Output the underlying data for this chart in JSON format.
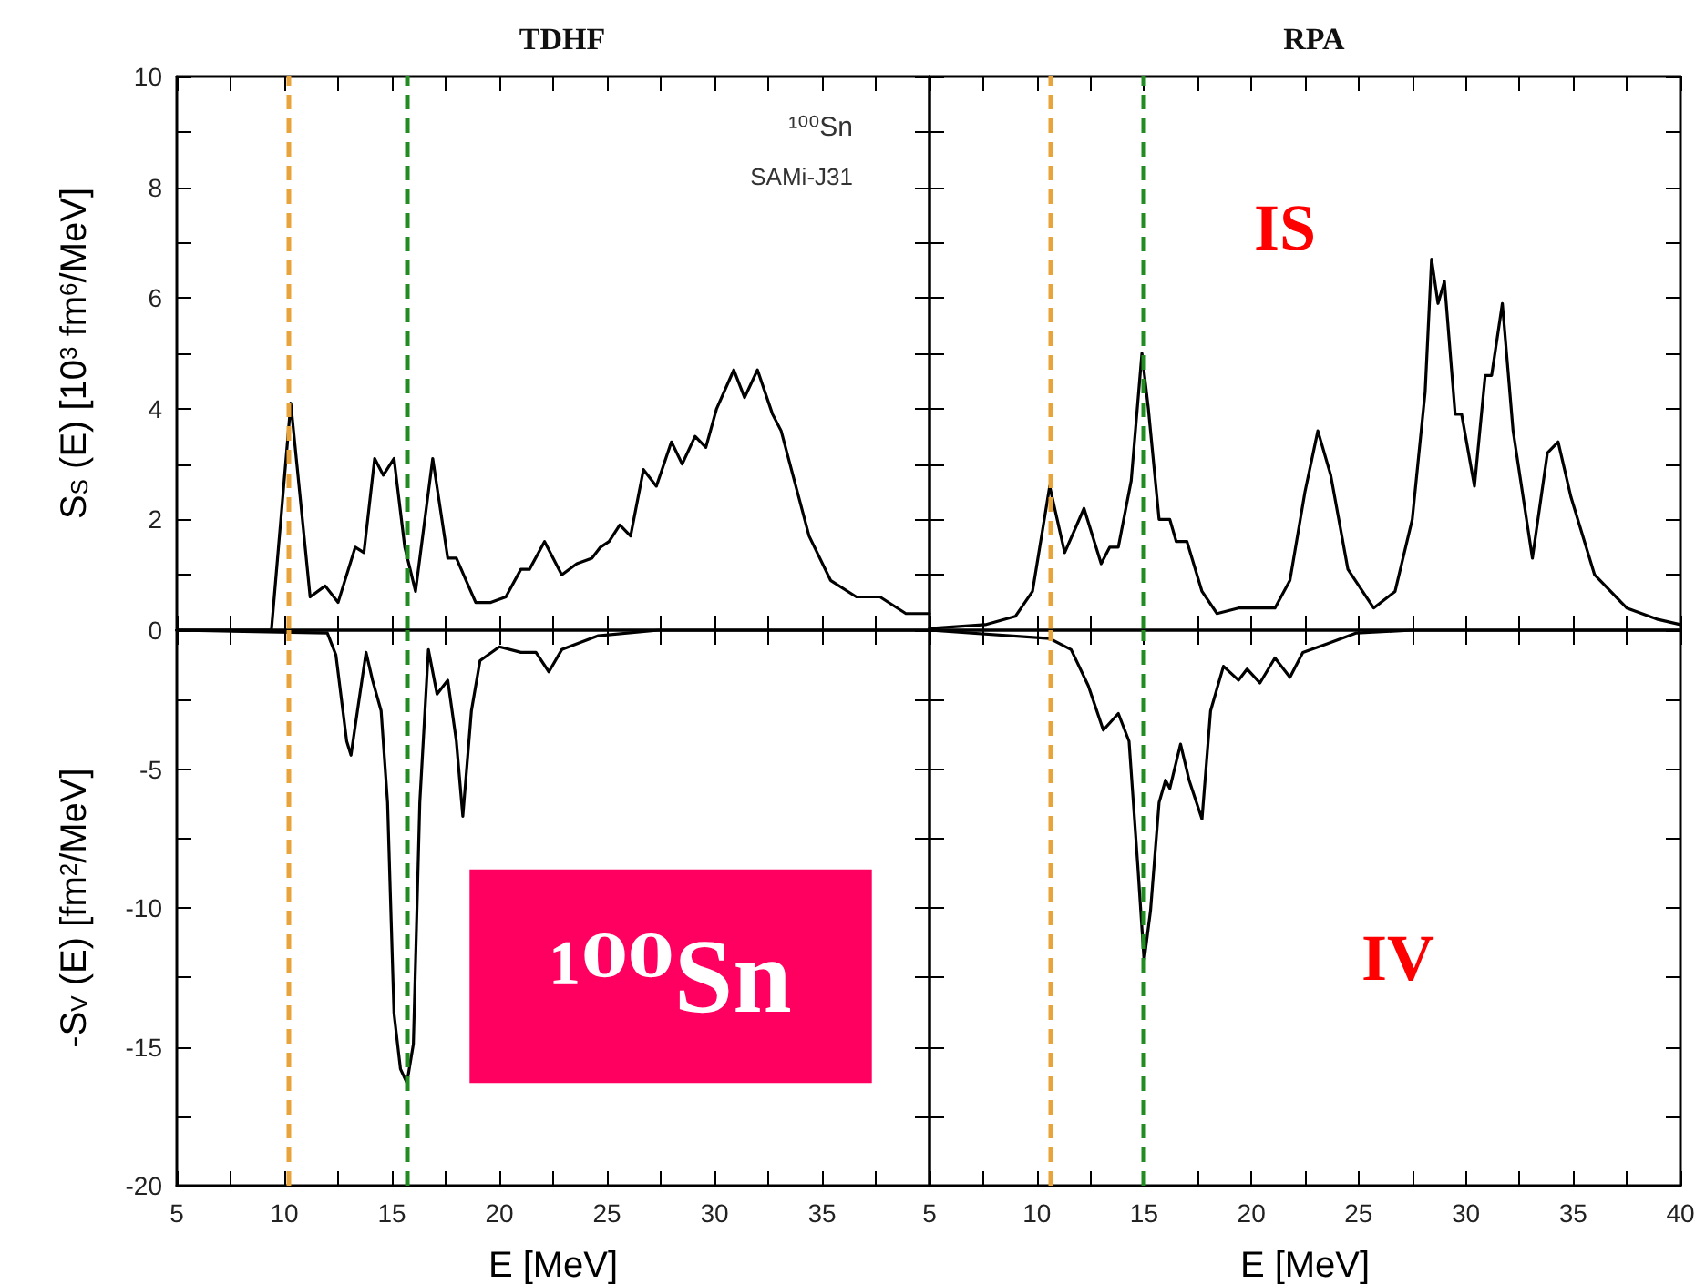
{
  "chart_data": [
    {
      "type": "line",
      "title": "TDHF",
      "ylabel": "S$_{S}$ (E) [10$^{3}$ fm$^{6}$/MeV]",
      "annotations": [
        "¹⁰⁰Sn",
        "SAMi-J31"
      ],
      "x": [
        5,
        9.4,
        10.3,
        11.2,
        11.9,
        12.5,
        13.3,
        13.7,
        14.2,
        14.6,
        15.1,
        15.6,
        16.1,
        16.9,
        17.6,
        18.0,
        18.9,
        19.6,
        20.3,
        21.0,
        21.4,
        22.1,
        22.9,
        23.6,
        24.3,
        24.7,
        25.1,
        25.6,
        26.1,
        26.7,
        27.3,
        28.0,
        28.5,
        29.1,
        29.6,
        30.1,
        30.9,
        31.4,
        32.0,
        32.7,
        33.1,
        34.4,
        35.4,
        36.6,
        37.7,
        38.9,
        40
      ],
      "series": [
        {
          "color": "#000000",
          "values": [
            0,
            0,
            4.1,
            0.6,
            0.8,
            0.5,
            1.5,
            1.4,
            3.1,
            2.8,
            3.1,
            1.5,
            0.7,
            3.1,
            1.3,
            1.3,
            0.5,
            0.5,
            0.6,
            1.1,
            1.1,
            1.6,
            1.0,
            1.2,
            1.3,
            1.5,
            1.6,
            1.9,
            1.7,
            2.9,
            2.6,
            3.4,
            3.0,
            3.5,
            3.3,
            4.0,
            4.7,
            4.2,
            4.7,
            3.9,
            3.6,
            1.7,
            0.9,
            0.6,
            0.6,
            0.3,
            0.3
          ]
        }
      ],
      "xlim": [
        5,
        40
      ],
      "xticks": [
        5,
        7.5,
        10,
        12.5,
        15,
        17.5,
        20,
        22.5,
        25,
        27.5,
        30,
        32.5,
        35,
        37.5,
        40
      ],
      "ylim": [
        0,
        10
      ],
      "yticks": [
        0,
        {
          "value": 1,
          "label": null
        },
        2,
        {
          "value": 3,
          "label": null
        },
        4,
        {
          "value": 5,
          "label": null
        },
        6,
        {
          "value": 7,
          "label": null
        },
        8,
        {
          "value": 9,
          "label": null
        },
        10
      ],
      "tick_labels": "y",
      "grid": false,
      "marker": "none",
      "line_style": "solid",
      "ref_lines": [
        {
          "axis": "x",
          "value": 10.2,
          "color": "#e8a33a",
          "line_style": "dashed"
        },
        {
          "axis": "x",
          "value": 15.7,
          "color": "#228b22",
          "line_style": "dashed"
        }
      ]
    },
    {
      "type": "line",
      "title": "RPA",
      "annotations": [
        "IS"
      ],
      "x": [
        5,
        7.6,
        9.0,
        9.8,
        10.6,
        11.3,
        12.2,
        13.0,
        13.4,
        13.8,
        14.4,
        14.9,
        15.2,
        15.7,
        16.2,
        16.5,
        17.0,
        17.7,
        18.4,
        19.4,
        20.4,
        21.1,
        21.8,
        22.5,
        23.1,
        23.7,
        24.5,
        25.7,
        26.7,
        27.5,
        28.1,
        28.4,
        28.7,
        29.0,
        29.5,
        29.8,
        30.4,
        30.9,
        31.2,
        31.7,
        32.2,
        33.1,
        33.8,
        34.3,
        34.9,
        36.0,
        37.5,
        38.9,
        40
      ],
      "series": [
        {
          "color": "#000000",
          "values": [
            0.03,
            0.1,
            0.25,
            0.7,
            2.6,
            1.4,
            2.2,
            1.2,
            1.5,
            1.5,
            2.7,
            5.0,
            4.0,
            2.0,
            2.0,
            1.6,
            1.6,
            0.7,
            0.3,
            0.4,
            0.4,
            0.4,
            0.9,
            2.5,
            3.6,
            2.8,
            1.1,
            0.4,
            0.7,
            2.0,
            4.3,
            6.7,
            5.9,
            6.3,
            3.9,
            3.9,
            2.6,
            4.6,
            4.6,
            5.9,
            3.6,
            1.3,
            3.2,
            3.4,
            2.4,
            1.0,
            0.4,
            0.2,
            0.1
          ]
        }
      ],
      "xlim": [
        5,
        40
      ],
      "xticks": [
        5,
        7.5,
        10,
        12.5,
        15,
        17.5,
        20,
        22.5,
        25,
        27.5,
        30,
        32.5,
        35,
        37.5,
        40
      ],
      "ylim": [
        0,
        10
      ],
      "yticks": [
        0,
        1,
        2,
        3,
        4,
        5,
        6,
        7,
        8,
        9,
        10
      ],
      "tick_labels": false,
      "grid": false,
      "marker": "none",
      "line_style": "solid",
      "ref_lines": [
        {
          "axis": "x",
          "value": 10.6,
          "color": "#e8a33a",
          "line_style": "dashed"
        },
        {
          "axis": "x",
          "value": 15.0,
          "color": "#228b22",
          "line_style": "dashed"
        }
      ]
    },
    {
      "type": "line",
      "xlabel": "E [MeV]",
      "ylabel": "-S$_{V}$ (E) [fm$^{2}$/MeV]",
      "annotations": [
        "¹⁰⁰Sn"
      ],
      "x": [
        5,
        12.0,
        12.4,
        12.9,
        13.1,
        13.4,
        13.8,
        14.1,
        14.5,
        14.8,
        15.1,
        15.4,
        15.7,
        16.0,
        16.3,
        16.7,
        17.1,
        17.6,
        18.0,
        18.3,
        18.7,
        19.1,
        20.0,
        21.0,
        21.7,
        22.3,
        22.9,
        24.6,
        27.4,
        40
      ],
      "series": [
        {
          "color": "#000000",
          "values": [
            0,
            -0.1,
            -0.9,
            -4.0,
            -4.5,
            -2.9,
            -0.8,
            -1.8,
            -2.9,
            -6.2,
            -13.8,
            -15.8,
            -16.3,
            -14.9,
            -6.2,
            -0.7,
            -2.3,
            -1.8,
            -4.0,
            -6.7,
            -2.9,
            -1.1,
            -0.6,
            -0.8,
            -0.8,
            -1.5,
            -0.7,
            -0.2,
            0,
            0
          ]
        }
      ],
      "xlim": [
        5,
        40
      ],
      "xticks": [
        5,
        {
          "value": 7.5,
          "label": null
        },
        10,
        {
          "value": 12.5,
          "label": null
        },
        15,
        {
          "value": 17.5,
          "label": null
        },
        20,
        {
          "value": 22.5,
          "label": null
        },
        25,
        {
          "value": 27.5,
          "label": null
        },
        30,
        {
          "value": 32.5,
          "label": null
        },
        35,
        {
          "value": 37.5,
          "label": null
        },
        {
          "value": 40,
          "label": null
        }
      ],
      "ylim": [
        -20,
        0
      ],
      "yticks": [
        -20,
        {
          "value": -17.5,
          "label": null
        },
        -15,
        {
          "value": -12.5,
          "label": null
        },
        -10,
        {
          "value": -7.5,
          "label": null
        },
        -5,
        {
          "value": -2.5,
          "label": null
        },
        {
          "value": 0,
          "label": null
        }
      ],
      "grid": false,
      "marker": "none",
      "line_style": "solid",
      "ref_lines": [
        {
          "axis": "x",
          "value": 10.2,
          "color": "#e8a33a",
          "line_style": "dashed"
        },
        {
          "axis": "x",
          "value": 15.7,
          "color": "#228b22",
          "line_style": "dashed"
        }
      ]
    },
    {
      "type": "line",
      "xlabel": "E [MeV]",
      "annotations": [
        "IV"
      ],
      "x": [
        5,
        10.6,
        11.6,
        12.4,
        13.1,
        13.8,
        14.3,
        14.7,
        15.0,
        15.3,
        15.7,
        16.0,
        16.2,
        16.7,
        17.1,
        17.7,
        18.1,
        18.7,
        19.4,
        19.8,
        20.4,
        21.1,
        21.8,
        22.4,
        23.5,
        24.9,
        27.5,
        40
      ],
      "series": [
        {
          "color": "#000000",
          "values": [
            0,
            -0.3,
            -0.7,
            -2.0,
            -3.6,
            -3.0,
            -4.0,
            -8.4,
            -11.9,
            -10.1,
            -6.2,
            -5.4,
            -5.7,
            -4.1,
            -5.4,
            -6.8,
            -2.9,
            -1.3,
            -1.8,
            -1.4,
            -1.9,
            -1.0,
            -1.7,
            -0.8,
            -0.5,
            -0.1,
            0,
            0
          ]
        }
      ],
      "xlim": [
        5,
        40
      ],
      "xticks": [
        5,
        {
          "value": 7.5,
          "label": null
        },
        10,
        {
          "value": 12.5,
          "label": null
        },
        15,
        {
          "value": 17.5,
          "label": null
        },
        20,
        {
          "value": 22.5,
          "label": null
        },
        25,
        {
          "value": 27.5,
          "label": null
        },
        30,
        {
          "value": 32.5,
          "label": null
        },
        35,
        {
          "value": 37.5,
          "label": null
        },
        40
      ],
      "ylim": [
        -20,
        0
      ],
      "yticks": [
        -20,
        -17.5,
        -15,
        -12.5,
        -10,
        -7.5,
        -5,
        -2.5,
        0
      ],
      "tick_labels": "x",
      "grid": false,
      "marker": "none",
      "line_style": "solid",
      "ref_lines": [
        {
          "axis": "x",
          "value": 10.6,
          "color": "#e8a33a",
          "line_style": "dashed"
        },
        {
          "axis": "x",
          "value": 15.0,
          "color": "#228b22",
          "line_style": "dashed"
        }
      ]
    }
  ]
}
